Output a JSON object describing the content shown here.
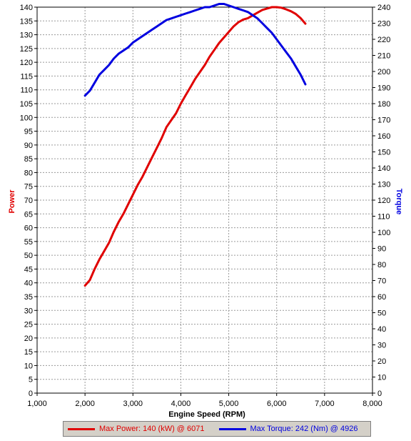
{
  "chart_data": {
    "type": "line",
    "xlabel": "Engine Speed (RPM)",
    "ylabel_left": "Power",
    "ylabel_right": "Torque",
    "xlim": [
      1000,
      8000
    ],
    "ylim_left": [
      0,
      140
    ],
    "ylim_right": [
      0,
      240
    ],
    "x_ticks": [
      "1,000",
      "2,000",
      "3,000",
      "4,000",
      "5,000",
      "6,000",
      "7,000",
      "8,000"
    ],
    "y_left_ticks": [
      0,
      5,
      10,
      15,
      20,
      25,
      30,
      35,
      40,
      45,
      50,
      55,
      60,
      65,
      70,
      75,
      80,
      85,
      90,
      95,
      100,
      105,
      110,
      115,
      120,
      125,
      130,
      135,
      140
    ],
    "y_right_ticks": [
      0,
      10,
      20,
      30,
      40,
      50,
      60,
      70,
      80,
      90,
      100,
      110,
      120,
      130,
      140,
      150,
      160,
      170,
      180,
      190,
      200,
      210,
      220,
      230,
      240
    ],
    "grid": true,
    "legend_position": "bottom",
    "series": [
      {
        "name": "Max Power: 140 (kW) @ 6071",
        "axis": "left",
        "color": "#e00000",
        "x": [
          2000,
          2100,
          2200,
          2300,
          2400,
          2500,
          2600,
          2700,
          2800,
          2900,
          3000,
          3100,
          3200,
          3300,
          3400,
          3500,
          3600,
          3700,
          3800,
          3900,
          4000,
          4100,
          4200,
          4300,
          4400,
          4500,
          4600,
          4700,
          4800,
          4900,
          5000,
          5100,
          5200,
          5300,
          5400,
          5500,
          5600,
          5700,
          5800,
          5900,
          6000,
          6100,
          6200,
          6300,
          6400,
          6500,
          6600
        ],
        "y": [
          39,
          41,
          45,
          48.5,
          51.5,
          54.5,
          58.5,
          62,
          65,
          68.5,
          72,
          75.5,
          78.5,
          82,
          85.5,
          89,
          92.5,
          96.5,
          99,
          101.5,
          105,
          108,
          111,
          114,
          116.5,
          119,
          122,
          124.5,
          127,
          129,
          131,
          133,
          134.5,
          135.5,
          136,
          137,
          138,
          139,
          139.5,
          140,
          140,
          139.8,
          139.2,
          138.5,
          137.5,
          136,
          134
        ]
      },
      {
        "name": "Max Torque: 242 (Nm) @ 4926",
        "axis": "right",
        "color": "#0000e0",
        "x": [
          2000,
          2100,
          2200,
          2300,
          2400,
          2500,
          2600,
          2700,
          2800,
          2900,
          3000,
          3100,
          3200,
          3300,
          3400,
          3500,
          3600,
          3700,
          3800,
          3900,
          4000,
          4100,
          4200,
          4300,
          4400,
          4500,
          4600,
          4700,
          4800,
          4900,
          5000,
          5100,
          5200,
          5300,
          5400,
          5500,
          5600,
          5700,
          5800,
          5900,
          6000,
          6100,
          6200,
          6300,
          6400,
          6500,
          6600
        ],
        "y": [
          185,
          188,
          193,
          198,
          201,
          204,
          208,
          211,
          213,
          215,
          218,
          220,
          222,
          224,
          226,
          228,
          230,
          232,
          233,
          234,
          235,
          236,
          237,
          238,
          239,
          240,
          240,
          241,
          242,
          242,
          241,
          240,
          239,
          238,
          237,
          235,
          233,
          230,
          227,
          224,
          220,
          216,
          212,
          208,
          203,
          198,
          192
        ]
      }
    ]
  },
  "legend": {
    "power": "Max Power: 140 (kW) @ 6071",
    "torque": "Max Torque: 242 (Nm) @ 4926",
    "power_color": "#e00000",
    "torque_color": "#0000e0"
  }
}
